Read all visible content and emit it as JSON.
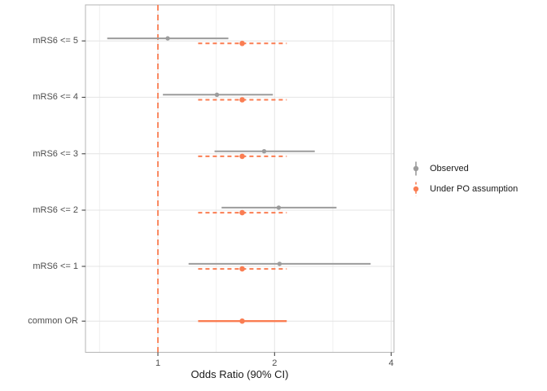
{
  "chart_data": {
    "type": "scatter",
    "variant": "forest-plot-with-error-bars",
    "title": "",
    "xlabel": "Odds Ratio (90% CI)",
    "ylabel": "",
    "x_scale": "log2",
    "x_ticks": [
      1,
      2,
      4
    ],
    "x_tick_labels": [
      "1",
      "2",
      "4"
    ],
    "x_minor_gridlines": [
      0.707,
      1.414,
      2.828
    ],
    "x_range": [
      0.65,
      4.06
    ],
    "reference_line_x": 1,
    "grid": true,
    "legend_position": "right",
    "categories": [
      "mRS6 <= 5",
      "mRS6 <= 4",
      "mRS6 <= 3",
      "mRS6 <= 2",
      "mRS6 <= 1",
      "common OR"
    ],
    "series": [
      {
        "name": "Observed",
        "color": "#9C9C9C",
        "line_style": "solid",
        "points": [
          {
            "category": "mRS6 <= 5",
            "or": 1.06,
            "lo": 0.74,
            "hi": 1.52
          },
          {
            "category": "mRS6 <= 4",
            "or": 1.42,
            "lo": 1.03,
            "hi": 1.98
          },
          {
            "category": "mRS6 <= 3",
            "or": 1.88,
            "lo": 1.4,
            "hi": 2.54
          },
          {
            "category": "mRS6 <= 2",
            "or": 2.05,
            "lo": 1.46,
            "hi": 2.89
          },
          {
            "category": "mRS6 <= 1",
            "or": 2.06,
            "lo": 1.2,
            "hi": 3.54
          }
        ]
      },
      {
        "name": "Under PO assumption",
        "color": "#FA7D52",
        "line_style": "dashed",
        "points": [
          {
            "category": "mRS6 <= 5",
            "or": 1.65,
            "lo": 1.27,
            "hi": 2.15
          },
          {
            "category": "mRS6 <= 4",
            "or": 1.65,
            "lo": 1.27,
            "hi": 2.15
          },
          {
            "category": "mRS6 <= 3",
            "or": 1.65,
            "lo": 1.27,
            "hi": 2.15
          },
          {
            "category": "mRS6 <= 2",
            "or": 1.65,
            "lo": 1.27,
            "hi": 2.15
          },
          {
            "category": "mRS6 <= 1",
            "or": 1.65,
            "lo": 1.27,
            "hi": 2.15
          }
        ]
      }
    ],
    "common_or": {
      "category": "common OR",
      "or": 1.65,
      "lo": 1.27,
      "hi": 2.15,
      "line_style": "solid"
    }
  },
  "colors": {
    "observed": "#9C9C9C",
    "po": "#FA7D52",
    "reference_line": "#FA7D52",
    "grid_major": "#E4E4E4",
    "grid_minor": "#F0F0F0",
    "panel_border": "#B5B5B5",
    "axis_tick": "#333333",
    "tick_label": "#4D4D4D",
    "axis_title": "#1A1A1A",
    "legend_text": "#1A1A1A"
  }
}
